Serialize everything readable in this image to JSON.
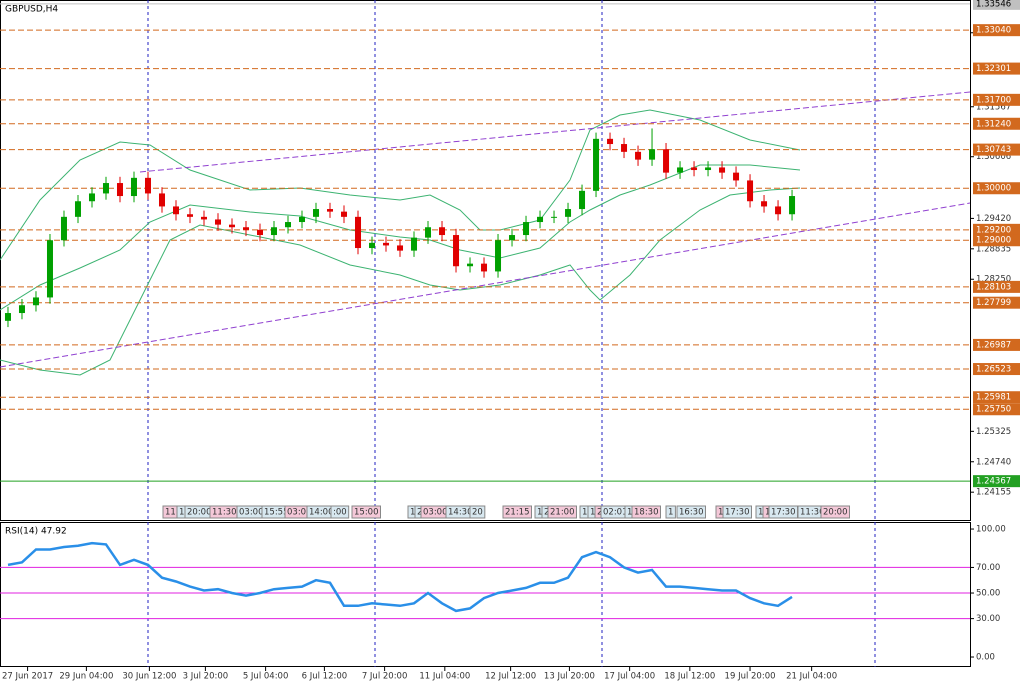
{
  "chart_data": {
    "type": "candlestick",
    "title": "GBPUSD,H4",
    "up_color": "#00a000",
    "down_color": "#e00000",
    "candles": {
      "open": [
        1.2745,
        1.276,
        1.2775,
        1.279,
        1.29,
        1.2945,
        1.2975,
        1.299,
        1.301,
        1.2985,
        1.302,
        1.299,
        1.2965,
        1.295,
        1.2945,
        1.294,
        1.293,
        1.2925,
        1.292,
        1.291,
        1.2925,
        1.2935,
        1.2945,
        1.296,
        1.2955,
        1.2945,
        1.2885,
        1.2895,
        1.289,
        1.288,
        1.2905,
        1.2925,
        1.291,
        1.285,
        1.2855,
        1.284,
        1.29,
        1.291,
        1.2935,
        1.2945,
        1.2945,
        1.296,
        1.2995,
        1.3095,
        1.3085,
        1.307,
        1.3055,
        1.3075,
        1.303,
        1.304,
        1.3035,
        1.304,
        1.303,
        1.3015,
        1.2975,
        1.2965,
        1.295
      ],
      "high": [
        1.2772,
        1.2787,
        1.2802,
        1.2912,
        1.2957,
        1.2987,
        1.3002,
        1.3022,
        1.3022,
        1.3032,
        1.3032,
        1.3002,
        1.2977,
        1.2962,
        1.2957,
        1.2952,
        1.2942,
        1.2937,
        1.2932,
        1.2937,
        1.2947,
        1.2957,
        1.2972,
        1.2972,
        1.2967,
        1.2957,
        1.2907,
        1.2907,
        1.2902,
        1.2917,
        1.2937,
        1.2937,
        1.2922,
        1.2867,
        1.2867,
        1.2912,
        1.2922,
        1.2947,
        1.2957,
        1.2957,
        1.2972,
        1.3007,
        1.3107,
        1.3107,
        1.3097,
        1.3082,
        1.3115,
        1.3087,
        1.3052,
        1.3052,
        1.3052,
        1.3052,
        1.3042,
        1.3027,
        1.2987,
        1.2977,
        1.2997
      ],
      "low": [
        1.2733,
        1.2748,
        1.2763,
        1.2778,
        1.2888,
        1.2933,
        1.2963,
        1.2978,
        1.2973,
        1.2973,
        1.2978,
        1.2953,
        1.2938,
        1.2933,
        1.2928,
        1.2918,
        1.2913,
        1.2908,
        1.2898,
        1.2898,
        1.2913,
        1.2923,
        1.2933,
        1.2943,
        1.2933,
        1.2873,
        1.2873,
        1.2878,
        1.2868,
        1.2868,
        1.2893,
        1.2898,
        1.2838,
        1.2838,
        1.2828,
        1.2828,
        1.2888,
        1.2898,
        1.2923,
        1.2933,
        1.2933,
        1.2948,
        1.2983,
        1.3073,
        1.3058,
        1.3043,
        1.3043,
        1.3018,
        1.3018,
        1.3023,
        1.3023,
        1.3018,
        1.3003,
        1.2963,
        1.2953,
        1.2938,
        1.2938
      ],
      "close": [
        1.276,
        1.2775,
        1.279,
        1.29,
        1.2945,
        1.2975,
        1.299,
        1.301,
        1.2985,
        1.302,
        1.299,
        1.2965,
        1.295,
        1.2945,
        1.294,
        1.293,
        1.2925,
        1.292,
        1.291,
        1.2925,
        1.2935,
        1.2945,
        1.296,
        1.2955,
        1.2945,
        1.2885,
        1.2895,
        1.289,
        1.288,
        1.2905,
        1.2925,
        1.291,
        1.285,
        1.2855,
        1.284,
        1.29,
        1.291,
        1.2935,
        1.2945,
        1.2945,
        1.296,
        1.2995,
        1.3095,
        1.3085,
        1.307,
        1.3055,
        1.3075,
        1.303,
        1.304,
        1.3035,
        1.304,
        1.303,
        1.3015,
        1.2975,
        1.2965,
        1.295,
        1.2985
      ]
    },
    "xlim": [
      -0.57,
      68.71
    ],
    "ylim": [
      1.2362,
      1.3362
    ],
    "xticks": [
      {
        "value": 1.4,
        "label": "27 Jun 2017"
      },
      {
        "value": 5.6,
        "label": "29 Jun 04:00"
      },
      {
        "value": 10.1,
        "label": "30 Jun 12:00"
      },
      {
        "value": 14.1,
        "label": "3 Jul 20:00"
      },
      {
        "value": 18.4,
        "label": "5 Jul 04:00"
      },
      {
        "value": 22.6,
        "label": "6 Jul 12:00"
      },
      {
        "value": 26.9,
        "label": "7 Jul 20:00"
      },
      {
        "value": 31.2,
        "label": "11 Jul 04:00"
      },
      {
        "value": 35.9,
        "label": "12 Jul 12:00"
      },
      {
        "value": 40.1,
        "label": "13 Jul 20:00"
      },
      {
        "value": 44.4,
        "label": "17 Jul 04:00"
      },
      {
        "value": 48.7,
        "label": "18 Jul 12:00"
      },
      {
        "value": 53,
        "label": "19 Jul 20:00"
      },
      {
        "value": 57.4,
        "label": "21 Jul 04:00"
      }
    ],
    "yticks": [
      {
        "value": 1.24155,
        "label": "1.24155"
      },
      {
        "value": 1.2474,
        "label": "1.24740"
      },
      {
        "value": 1.25325,
        "label": "1.25325"
      },
      {
        "value": 1.2825,
        "label": "1.28250"
      },
      {
        "value": 1.28835,
        "label": "1.28835"
      },
      {
        "value": 1.2942,
        "label": "1.29420"
      },
      {
        "value": 1.30606,
        "label": "1.30606"
      },
      {
        "value": 1.31567,
        "label": "1.31567"
      },
      {
        "value": 1.3299,
        "label": "1.32990"
      }
    ],
    "levels": [
      {
        "value": 1.33546,
        "label": "1.33546",
        "color": "#c0c0c0"
      },
      {
        "value": 1.3304,
        "label": "1.33040",
        "color": "#d2691e"
      },
      {
        "value": 1.32301,
        "label": "1.32301",
        "color": "#d2691e"
      },
      {
        "value": 1.317,
        "label": "1.31700",
        "color": "#d2691e"
      },
      {
        "value": 1.3124,
        "label": "1.31240",
        "color": "#d2691e"
      },
      {
        "value": 1.30743,
        "label": "1.30743",
        "color": "#d2691e"
      },
      {
        "value": 1.3,
        "label": "1.30000",
        "color": "#d2691e"
      },
      {
        "value": 1.292,
        "label": "1.29200",
        "color": "#d2691e"
      },
      {
        "value": 1.29,
        "label": "1.29000",
        "color": "#d2691e"
      },
      {
        "value": 1.28103,
        "label": "1.28103",
        "color": "#d2691e"
      },
      {
        "value": 1.27799,
        "label": "1.27799",
        "color": "#d2691e"
      },
      {
        "value": 1.26987,
        "label": "1.26987",
        "color": "#d2691e"
      },
      {
        "value": 1.26523,
        "label": "1.26523",
        "color": "#d2691e"
      },
      {
        "value": 1.25981,
        "label": "1.25981",
        "color": "#d2691e"
      },
      {
        "value": 1.2575,
        "label": "1.25750",
        "color": "#d2691e"
      },
      {
        "value": 1.24367,
        "label": "1.24367",
        "color": "#22a022"
      }
    ],
    "time_tags": [
      "11:",
      "1",
      "20:00",
      "11:30",
      "03:00",
      "15:55",
      "03:00",
      "14:00",
      ":00",
      "15:00",
      "1",
      "2",
      "03:00",
      "14:30",
      "20",
      "21:15",
      "1",
      "2",
      "21:00",
      "1",
      "1",
      "2",
      "02:01",
      "1",
      "18:30",
      "1",
      "16:30",
      "1",
      "17:30",
      "1",
      "1",
      "17:30",
      "11:30",
      "20:00"
    ],
    "rsi": {
      "title": "RSI(14) 47.92",
      "color": "#2a8fe8",
      "level_color": "#e020e0",
      "values": [
        72,
        74,
        84,
        84,
        86,
        87,
        89,
        88,
        72,
        76,
        72,
        62,
        59,
        55,
        52,
        53,
        50,
        48,
        50,
        53,
        54,
        55,
        60,
        58,
        40,
        40,
        42,
        41,
        40,
        42,
        50,
        42,
        36,
        38,
        46,
        50,
        52,
        54,
        58,
        58,
        62,
        78,
        82,
        78,
        70,
        66,
        68,
        55,
        55,
        54,
        53,
        52,
        52,
        46,
        42,
        40,
        47
      ],
      "ylim": [
        -7.8,
        105.5
      ],
      "yticks": [
        {
          "value": 100,
          "label": "100.00"
        },
        {
          "value": 70,
          "label": "70.00"
        },
        {
          "value": 50,
          "label": "50.00"
        },
        {
          "value": 30,
          "label": "30.00"
        },
        {
          "value": 0,
          "label": "0.00"
        }
      ],
      "levels": [
        70,
        50,
        30
      ]
    }
  }
}
